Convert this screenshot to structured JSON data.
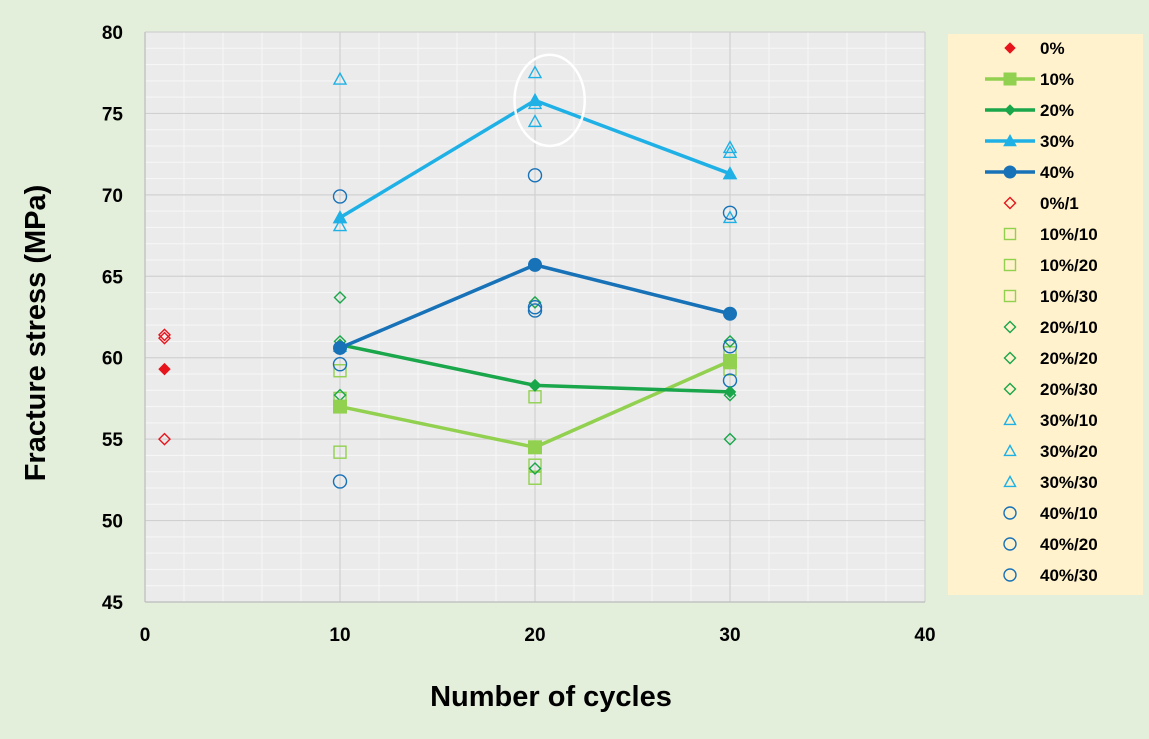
{
  "chart_data": {
    "type": "scatter",
    "xlabel": "Number of cycles",
    "ylabel": "Fracture stress (MPa)",
    "xlim": [
      0,
      40
    ],
    "ylim": [
      45,
      80
    ],
    "xticks": [
      0,
      10,
      20,
      30,
      40
    ],
    "yticks": [
      45,
      50,
      55,
      60,
      65,
      70,
      75,
      80
    ],
    "grid": "on",
    "legend_position": "right",
    "series": [
      {
        "name": "0%",
        "kind": "marker",
        "marker": "diamond",
        "filled": true,
        "color": "#e8141c",
        "x": [
          1
        ],
        "y": [
          59.3
        ]
      },
      {
        "name": "10%",
        "kind": "line",
        "marker": "square",
        "filled": true,
        "color": "#92d050",
        "x": [
          10,
          20,
          30
        ],
        "y": [
          57.0,
          54.5,
          59.8
        ]
      },
      {
        "name": "20%",
        "kind": "line",
        "marker": "diamond",
        "filled": true,
        "color": "#1aa64a",
        "x": [
          10,
          20,
          30
        ],
        "y": [
          60.8,
          58.3,
          57.9
        ]
      },
      {
        "name": "30%",
        "kind": "line",
        "marker": "triangle",
        "filled": true,
        "color": "#1fb1e6",
        "x": [
          10,
          20,
          30
        ],
        "y": [
          68.6,
          75.8,
          71.3
        ]
      },
      {
        "name": "40%",
        "kind": "line",
        "marker": "circle",
        "filled": true,
        "color": "#1872b8",
        "x": [
          10,
          20,
          30
        ],
        "y": [
          60.6,
          65.7,
          62.7
        ]
      },
      {
        "name": "0%/1",
        "kind": "marker",
        "marker": "diamond",
        "filled": false,
        "color": "#e8141c",
        "x": [
          1,
          1,
          1
        ],
        "y": [
          61.4,
          61.2,
          55.0
        ]
      },
      {
        "name": "10%/10",
        "kind": "marker",
        "marker": "square",
        "filled": false,
        "color": "#92d050",
        "x": [
          10,
          20,
          30
        ],
        "y": [
          54.2,
          57.6,
          59.3
        ]
      },
      {
        "name": "10%/20",
        "kind": "marker",
        "marker": "square",
        "filled": false,
        "color": "#92d050",
        "x": [
          10,
          20,
          30
        ],
        "y": [
          57.5,
          53.4,
          60.3
        ]
      },
      {
        "name": "10%/30",
        "kind": "marker",
        "marker": "square",
        "filled": false,
        "color": "#92d050",
        "x": [
          10,
          20,
          30
        ],
        "y": [
          59.2,
          52.6,
          59.7
        ]
      },
      {
        "name": "20%/10",
        "kind": "marker",
        "marker": "diamond",
        "filled": false,
        "color": "#1aa64a",
        "x": [
          10,
          20,
          30
        ],
        "y": [
          63.7,
          63.4,
          61.0
        ]
      },
      {
        "name": "20%/20",
        "kind": "marker",
        "marker": "diamond",
        "filled": false,
        "color": "#1aa64a",
        "x": [
          10,
          20,
          30
        ],
        "y": [
          57.7,
          53.2,
          57.7
        ]
      },
      {
        "name": "20%/30",
        "kind": "marker",
        "marker": "diamond",
        "filled": false,
        "color": "#1aa64a",
        "x": [
          10,
          20,
          30
        ],
        "y": [
          61.0,
          58.3,
          55.0
        ]
      },
      {
        "name": "30%/10",
        "kind": "marker",
        "marker": "triangle",
        "filled": false,
        "color": "#1fb1e6",
        "x": [
          10,
          20,
          30
        ],
        "y": [
          77.1,
          77.5,
          72.9
        ]
      },
      {
        "name": "30%/20",
        "kind": "marker",
        "marker": "triangle",
        "filled": false,
        "color": "#1fb1e6",
        "x": [
          10,
          20,
          30
        ],
        "y": [
          68.1,
          74.5,
          72.6
        ]
      },
      {
        "name": "30%/30",
        "kind": "marker",
        "marker": "triangle",
        "filled": false,
        "color": "#1fb1e6",
        "x": [
          10,
          20,
          30
        ],
        "y": [
          60.7,
          75.6,
          68.6
        ]
      },
      {
        "name": "40%/10",
        "kind": "marker",
        "marker": "circle",
        "filled": false,
        "color": "#1872b8",
        "x": [
          10,
          20,
          30
        ],
        "y": [
          69.9,
          71.2,
          68.9
        ]
      },
      {
        "name": "40%/20",
        "kind": "marker",
        "marker": "circle",
        "filled": false,
        "color": "#1872b8",
        "x": [
          10,
          20,
          30
        ],
        "y": [
          59.6,
          63.1,
          60.7
        ]
      },
      {
        "name": "40%/30",
        "kind": "marker",
        "marker": "circle",
        "filled": false,
        "color": "#1872b8",
        "x": [
          10,
          20,
          30
        ],
        "y": [
          52.4,
          62.9,
          58.6
        ]
      }
    ],
    "annotations": [
      {
        "type": "ellipse",
        "color": "#ffffff",
        "x_center": 20.75,
        "y_center": 75.8,
        "x_radius": 1.8,
        "y_radius": 2.8
      }
    ]
  },
  "colors": {
    "page_background": "#e3efdb",
    "plot_background": "#ebebeb",
    "legend_background": "#fff2cc",
    "gridline": "#ffffff"
  }
}
